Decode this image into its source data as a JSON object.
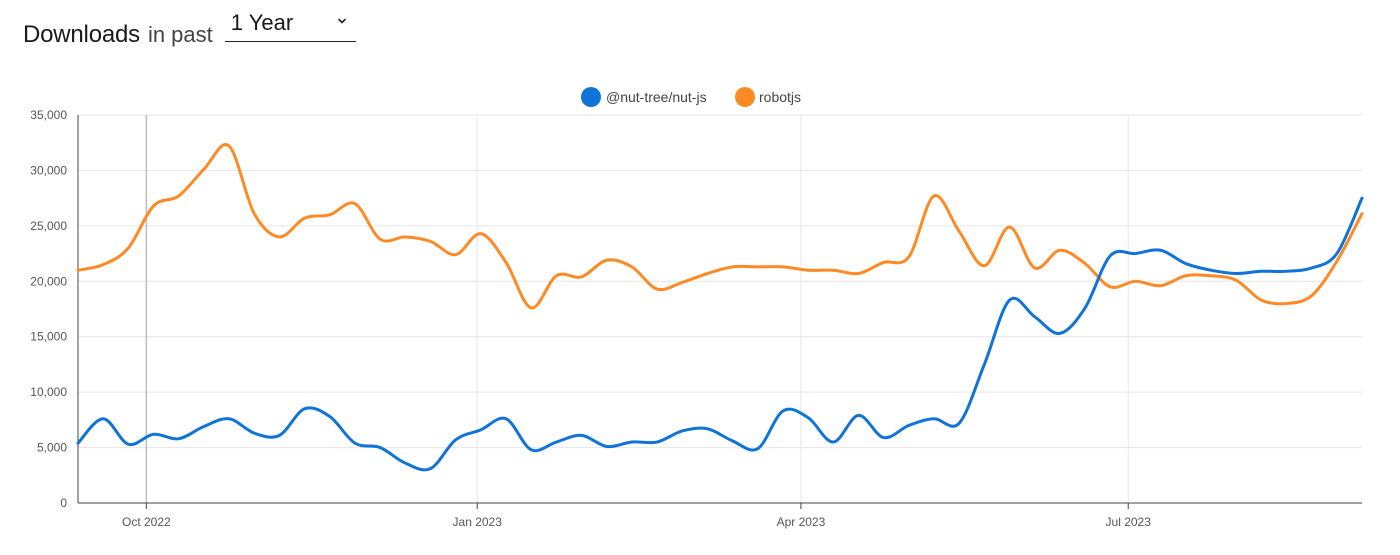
{
  "header": {
    "title": "Downloads",
    "subtitle": "in past",
    "range_selected": "1 Year"
  },
  "colors": {
    "series_1": "#0f73d8",
    "series_2": "#fd8a25",
    "grid": "#e6e6e6",
    "marker": "#bdbdbd"
  },
  "chart_data": {
    "type": "line",
    "title": "",
    "xlabel": "",
    "ylabel": "",
    "ylim": [
      0,
      35000
    ],
    "yticks": [
      0,
      5000,
      10000,
      15000,
      20000,
      25000,
      30000,
      35000
    ],
    "ytick_labels": [
      "0",
      "5,000",
      "10,000",
      "15,000",
      "20,000",
      "25,000",
      "30,000",
      "35,000"
    ],
    "xlim": [
      "2022-09-12",
      "2023-09-04"
    ],
    "xticks": [
      "2022-10-01",
      "2023-01-01",
      "2023-04-01",
      "2023-07-01"
    ],
    "xtick_labels": [
      "Oct 2022",
      "Jan 2023",
      "Apr 2023",
      "Jul 2023"
    ],
    "grid": true,
    "legend_position": "top-center",
    "x": [
      "2022-09-12",
      "2022-09-19",
      "2022-09-26",
      "2022-10-03",
      "2022-10-10",
      "2022-10-17",
      "2022-10-24",
      "2022-10-31",
      "2022-11-07",
      "2022-11-14",
      "2022-11-21",
      "2022-11-28",
      "2022-12-05",
      "2022-12-12",
      "2022-12-19",
      "2022-12-26",
      "2023-01-02",
      "2023-01-09",
      "2023-01-16",
      "2023-01-23",
      "2023-01-30",
      "2023-02-06",
      "2023-02-13",
      "2023-02-20",
      "2023-02-27",
      "2023-03-06",
      "2023-03-13",
      "2023-03-20",
      "2023-03-27",
      "2023-04-03",
      "2023-04-10",
      "2023-04-17",
      "2023-04-24",
      "2023-05-01",
      "2023-05-08",
      "2023-05-15",
      "2023-05-22",
      "2023-05-29",
      "2023-06-05",
      "2023-06-12",
      "2023-06-19",
      "2023-06-26",
      "2023-07-03",
      "2023-07-10",
      "2023-07-17",
      "2023-07-24",
      "2023-07-31",
      "2023-08-07",
      "2023-08-14",
      "2023-08-21",
      "2023-08-28",
      "2023-09-04"
    ],
    "series": [
      {
        "name": "@nut-tree/nut-js",
        "values": [
          5400,
          7600,
          5300,
          6200,
          5800,
          6900,
          7600,
          6300,
          6100,
          8500,
          7800,
          5400,
          5000,
          3600,
          3100,
          5700,
          6600,
          7600,
          4800,
          5500,
          6100,
          5100,
          5500,
          5500,
          6500,
          6700,
          5600,
          4900,
          8300,
          7700,
          5500,
          7900,
          5900,
          7000,
          7600,
          7200,
          12500,
          18300,
          16800,
          15300,
          17600,
          22300,
          22500,
          22800,
          21600,
          21000,
          20700,
          20900,
          20900,
          21200,
          22500,
          27500
        ]
      },
      {
        "name": "robotjs",
        "values": [
          21000,
          21500,
          23000,
          26800,
          27700,
          30100,
          32200,
          26100,
          24000,
          25700,
          26000,
          27000,
          23800,
          24000,
          23600,
          22400,
          24300,
          21700,
          17600,
          20500,
          20400,
          21900,
          21300,
          19300,
          19900,
          20700,
          21300,
          21300,
          21300,
          21000,
          21000,
          20700,
          21700,
          22200,
          27700,
          24500,
          21400,
          24900,
          21200,
          22800,
          21600,
          19500,
          20000,
          19600,
          20500,
          20500,
          20100,
          18300,
          18000,
          18700,
          21800,
          26100
        ]
      }
    ]
  }
}
